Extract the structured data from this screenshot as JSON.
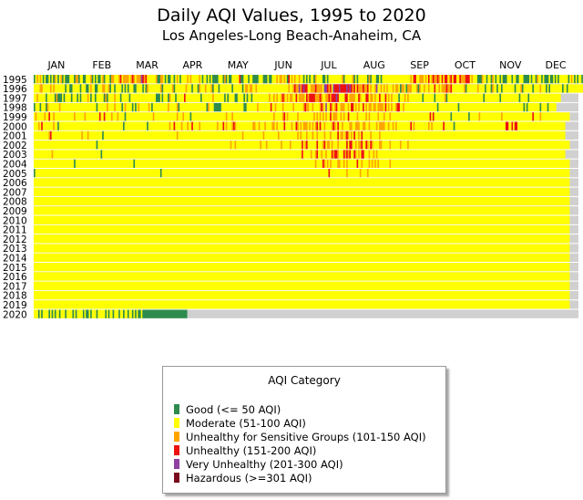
{
  "chart_data": {
    "type": "heatmap",
    "title": "Daily AQI Values, 1995 to 2020",
    "subtitle": "Los Angeles-Long Beach-Anaheim, CA",
    "months": [
      "JAN",
      "FEB",
      "MAR",
      "APR",
      "MAY",
      "JUN",
      "JUL",
      "AUG",
      "SEP",
      "OCT",
      "NOV",
      "DEC"
    ],
    "years": [
      "1995",
      "1996",
      "1997",
      "1998",
      "1999",
      "2000",
      "2001",
      "2002",
      "2003",
      "2004",
      "2005",
      "2006",
      "2007",
      "2008",
      "2009",
      "2010",
      "2011",
      "2012",
      "2013",
      "2014",
      "2015",
      "2016",
      "2017",
      "2018",
      "2019",
      "2020"
    ],
    "legend": {
      "title": "AQI Category",
      "placement": "bottom-center",
      "entries": [
        {
          "label": "Good (<= 50 AQI)",
          "color": "#2e8b4e"
        },
        {
          "label": "Moderate (51-100 AQI)",
          "color": "#ffff00"
        },
        {
          "label": "Unhealthy for Sensitive Groups (101-150 AQI)",
          "color": "#ffa500"
        },
        {
          "label": "Unhealthy (151-200 AQI)",
          "color": "#ee1111"
        },
        {
          "label": "Very Unhealthy (201-300 AQI)",
          "color": "#9040a0"
        },
        {
          "label": "Hazardous (>=301 AQI)",
          "color": "#7a0a1c"
        }
      ]
    },
    "no_data_color": "#d0d0d0",
    "series": [
      {
        "year": "1995",
        "codes": "123232121121213212312111222133122112223121211231222133222342333323432333543422222231133212112212321222232322222321221212111122213121122222411222122111122211121122232332321423232232212121221322221121222222222312222231212222221312221121222222222222222222232442233323242343343242442342442243334442322211132212213212212111222122112221111212213221211121121212222221232121221223222222"
      },
      {
        "year": "1996",
        "codes": "222233222223232222222122112222212221123221122233223122122221212122211222212132222222231222222312222222322212221322232223122212222222212222221233233223222222222222222222222322343353454422333433332554342544454444545434243334334232235223232322232332133213332223132232232224223233343342222222231222222232222122213221221222222221222312222221222232221212222222212212222222222"
      },
      {
        "year": "1997",
        "codes": "223222221222221311121222212221212222321221222221312222322212222212222222222222222211121222132221222224222222222212222222322222221212222112222121221222222222223223232234323233224233332434444333432233434445422224423333224322244233232242224232322221222323222222222122222221222222312222222222222222222222221222222222212222222222221222221222222222222222222222"
      },
      {
        "year": "1998",
        "codes": "122212221322222223222222222222222222222222122222232222322221232222121232222223212222222222322222312222222222222222221322211111222222222222222112222222322222222422322223222222322222234332232222343252243234223332232442323224232332332333324232322344223222222222222222222222212222222222222122222222222222222222222222222222222222222221212222222212222122222"
      },
      {
        "year": "1999",
        "codes": "232222232242232222222222222322222232222222224224222232223222212222222222222222223222222222222222322232222122222222222222222222222322232222222222222222222222222223222223423222222322222222223232323232242333223232242222232222232322222322232223222222222222222222222222224242222222222212222222222212222223222222222222223222222222222222222224222232222222222222222222"
      },
      {
        "year": "2000",
        "codes": "222324222222232212222222222222222222222222222222222222222222122222222222222212222222222222232242222322232242222322222222222322242322234322222222222332232223222233232222422223224323233323232342422322223432422322223322333223322322223233332232232322222222242322222222232322222224222222122222222222222222222222222222222224422424422222222222222222222222222222222"
      },
      {
        "year": "2001",
        "codes": "222222222234222222222222222222223222322222222212222222222222222222222222222222222222222222222222322222222222222222222222222222222222222222223222222222222232222222223222222222222323222322232232222322232222423323432324223242222232222232222222222222222222222222222222222222222222222222222222222222222222222222222222222222222222222222222222222222222222222222222"
      },
      {
        "year": "2002",
        "codes": "222222222222222222222222222222222222222222122222222222222222222222222222222222222222222222222222222222222222222222222222222222222222322322222222222222223222322222222232222232222222423422222242223423323222322222424422323342243243222233222223222222322223222222222222222222222222222222222222222222222222222222222222222222222222222222222222222222222222222222222222"
      },
      {
        "year": "2003",
        "codes": "222222222222322222222222222222222222222222222122222222222222222222222222222222222222222222222222222222222222222222222222222222222222222222222222222222222222222222222222222222222222422222322342232232224344322243434224323244222322323222222222222222222222222222222222222222222222222222222222222222222222222222222222222222222222222222222222222222222222222222222"
      },
      {
        "year": "2004",
        "codes": "222222222222222222222222222122222222222222222222222222222222222222212222222222222222222222222222222222222222222222222222222222222222222222222222222222222222222222222222222222222222222222222322224323232222332232322222242232222323232322222223222222222222222222222222222222222222222222222222222222222222222222222222222222222222222222222222222222222222222222222222"
      },
      {
        "year": "2005",
        "codes": "122222222222222222222222222222222222222222222222222222222222222222222222222222222222212222222222222222222222222222222222222222222222222222222222222222222222222222222222222222222222222222222222222222422222222222322222222322223222222222222222222222222222222222222222222222222222222222222222222222222222222222222222222222222222222222222222222222222222222222222222"
      },
      {
        "year": "2006",
        "codes": "222222222222222222222222222222222222222222222222222222222222222222222222222222222222222222222222222222222222222222222222222222222222222222222222222222222222222222222222222222222222222222222222222222222222222222222222222222222222222222222222222222222222222222222222222222222222222222222222222222222222222222222222222222222222222222222222222222222222222222222222"
      },
      {
        "year": "2007",
        "codes": "222222222222222222222222222222222222222222222222222222222222222222222222222222222222222222222222222222222222222222222222222222222222222222222222222222222222222222222222222222222222222222222222222222222222222222222222222222222222222222222222222222222222222222222222222222222222222222222222222222222222222222222222222222222222222222222222222222222222222222222222"
      },
      {
        "year": "2008",
        "codes": "222222222222222222222222222222222222222222222222222222222222222222222222222222222222222222222222222222222222222222222222222222222222222222222222222222222222222222222222222222222222222222222222222222222222222222222222222222222222222222222222222222222222222222222222222222222222222222222222222222222222222222222222222222222222222222222222222222222222222222222222"
      },
      {
        "year": "2009",
        "codes": "222222222222222222222222222222222222222222222222222222222222222222222222222222222222222222222222222222222222222222222222222222222222222222222222222222222222222222222222222222222222222222222222222222222222222222222222222222222222222222222222222222222222222222222222222222222222222222222222222222222222222222222222222222222222222222222222222222222222222222222222"
      },
      {
        "year": "2010",
        "codes": "222222222222222222222222222222222222222222222222222222222222222222222222222222222222222222222222222222222222222222222222222222222222222222222222222222222222222222222222222222222222222222222222222222222222222222222222222222222222222222222222222222222222222222222222222222222222222222222222222222222222222222222222222222222222222222222222222222222222222222222222"
      },
      {
        "year": "2011",
        "codes": "222222222222222222222222222222222222222222222222222222222222222222222222222222222222222222222222222222222222222222222222222222222222222222222222222222222222222222222222222222222222222222222222222222222222222222222222222222222222222222222222222222222222222222222222222222222222222222222222222222222222222222222222222222222222222222222222222222222222222222222222"
      },
      {
        "year": "2012",
        "codes": "222222222222222222222222222222222222222222222222222222222222222222222222222222222222222222222222222222222222222222222222222222222222222222222222222222222222222222222222222222222222222222222222222222222222222222222222222222222222222222222222222222222222222222222222222222222222222222222222222222222222222222222222222222222222222222222222222222222222222222222222"
      },
      {
        "year": "2013",
        "codes": "222222222222222222222222222222222222222222222222222222222222222222222222222222222222222222222222222222222222222222222222222222222222222222222222222222222222222222222222222222222222222222222222222222222222222222222222222222222222222222222222222222222222222222222222222222222222222222222222222222222222222222222222222222222222222222222222222222222222222222222222"
      },
      {
        "year": "2014",
        "codes": "222222222222222222222222222222222222222222222222222222222222222222222222222222222222222222222222222222222222222222222222222222222222222222222222222222222222222222222222222222222222222222222222222222222222222222222222222222222222222222222222222222222222222222222222222222222222222222222222222222222222222222222222222222222222222222222222222222222222222222222222"
      },
      {
        "year": "2015",
        "codes": "222222222222222222222222222222222222222222222222222222222222222222222222222222222222222222222222222222222222222222222222222222222222222222222222222222222222222222222222222222222222222222222222222222222222222222222222222222222222222222222222222222222222222222222222222222222222222222222222222222222222222222222222222222222222222222222222222222222222222222222222"
      },
      {
        "year": "2016",
        "codes": "222222222222222222222222222222222222222222222222222222222222222222222222222222222222222222222222222222222222222222222222222222222222222222222222222222222222222222222222222222222222222222222222222222222222222222222222222222222222222222222222222222222222222222222222222222222222222222222222222222222222222222222222222222222222222222222222222222222222222222222222"
      },
      {
        "year": "2017",
        "codes": "222222222222222222222222222222222222222222222222222222222222222222222222222222222222222222222222222222222222222222222222222222222222222222222222222222222222222222222222222222222222222222222222222222222222222222222222222222222222222222222222222222222222222222222222222222222222222222222222222222222222222222222222222222222222222222222222222222222222222222222222"
      },
      {
        "year": "2018",
        "codes": "222222222222222222222222222222222222222222222222222222222222222222222222222222222222222222222222222222222222222222222222222222222222222222222222222222222222222222222222222222222222222222222222222222222222222222222222222222222222222222222222222222222222222222222222222222222222222222222222222222222222222222222222222222222222222222222222222222222222222222222222"
      },
      {
        "year": "2019",
        "codes": "222222222222222222222222222222222222222222222222222222222222222222222222222222222222222222222222222222222222222222222222222222222222222222222222222222222222222222222222222222222222222222222222222222222222222222222222222222222222222222222222222222222222222222222222222222222222222222222222222222222222222222222222222222222222222222222222222222222222222222222222"
      },
      {
        "year": "2020",
        "codes": "2221212222121212212221222212122221211212221222221212212221221221221212112111111111111111111111111111111"
      }
    ]
  }
}
